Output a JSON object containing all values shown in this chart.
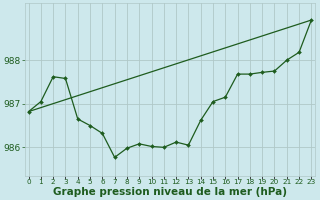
{
  "x": [
    0,
    1,
    2,
    3,
    4,
    5,
    6,
    7,
    8,
    9,
    10,
    11,
    12,
    13,
    14,
    15,
    16,
    17,
    18,
    19,
    20,
    21,
    22,
    23
  ],
  "line_zigzag": [
    986.82,
    987.05,
    987.62,
    987.58,
    986.65,
    986.5,
    986.32,
    985.77,
    985.98,
    986.08,
    986.02,
    986.0,
    986.12,
    986.05,
    986.62,
    987.05,
    987.15,
    987.68,
    987.68,
    987.72,
    987.75,
    988.0,
    988.18,
    988.92
  ],
  "trend_x": [
    0,
    23
  ],
  "trend_y": [
    986.82,
    988.92
  ],
  "bg_color": "#cde8ec",
  "line_color": "#1e5c1e",
  "grid_color": "#b0c8c8",
  "yticks": [
    986,
    987,
    988
  ],
  "xlabel": "Graphe pression niveau de la mer (hPa)",
  "xlabel_fontsize": 7.5,
  "tick_fontsize": 6.5,
  "ylim": [
    985.35,
    989.3
  ],
  "xlim": [
    -0.3,
    23.3
  ]
}
